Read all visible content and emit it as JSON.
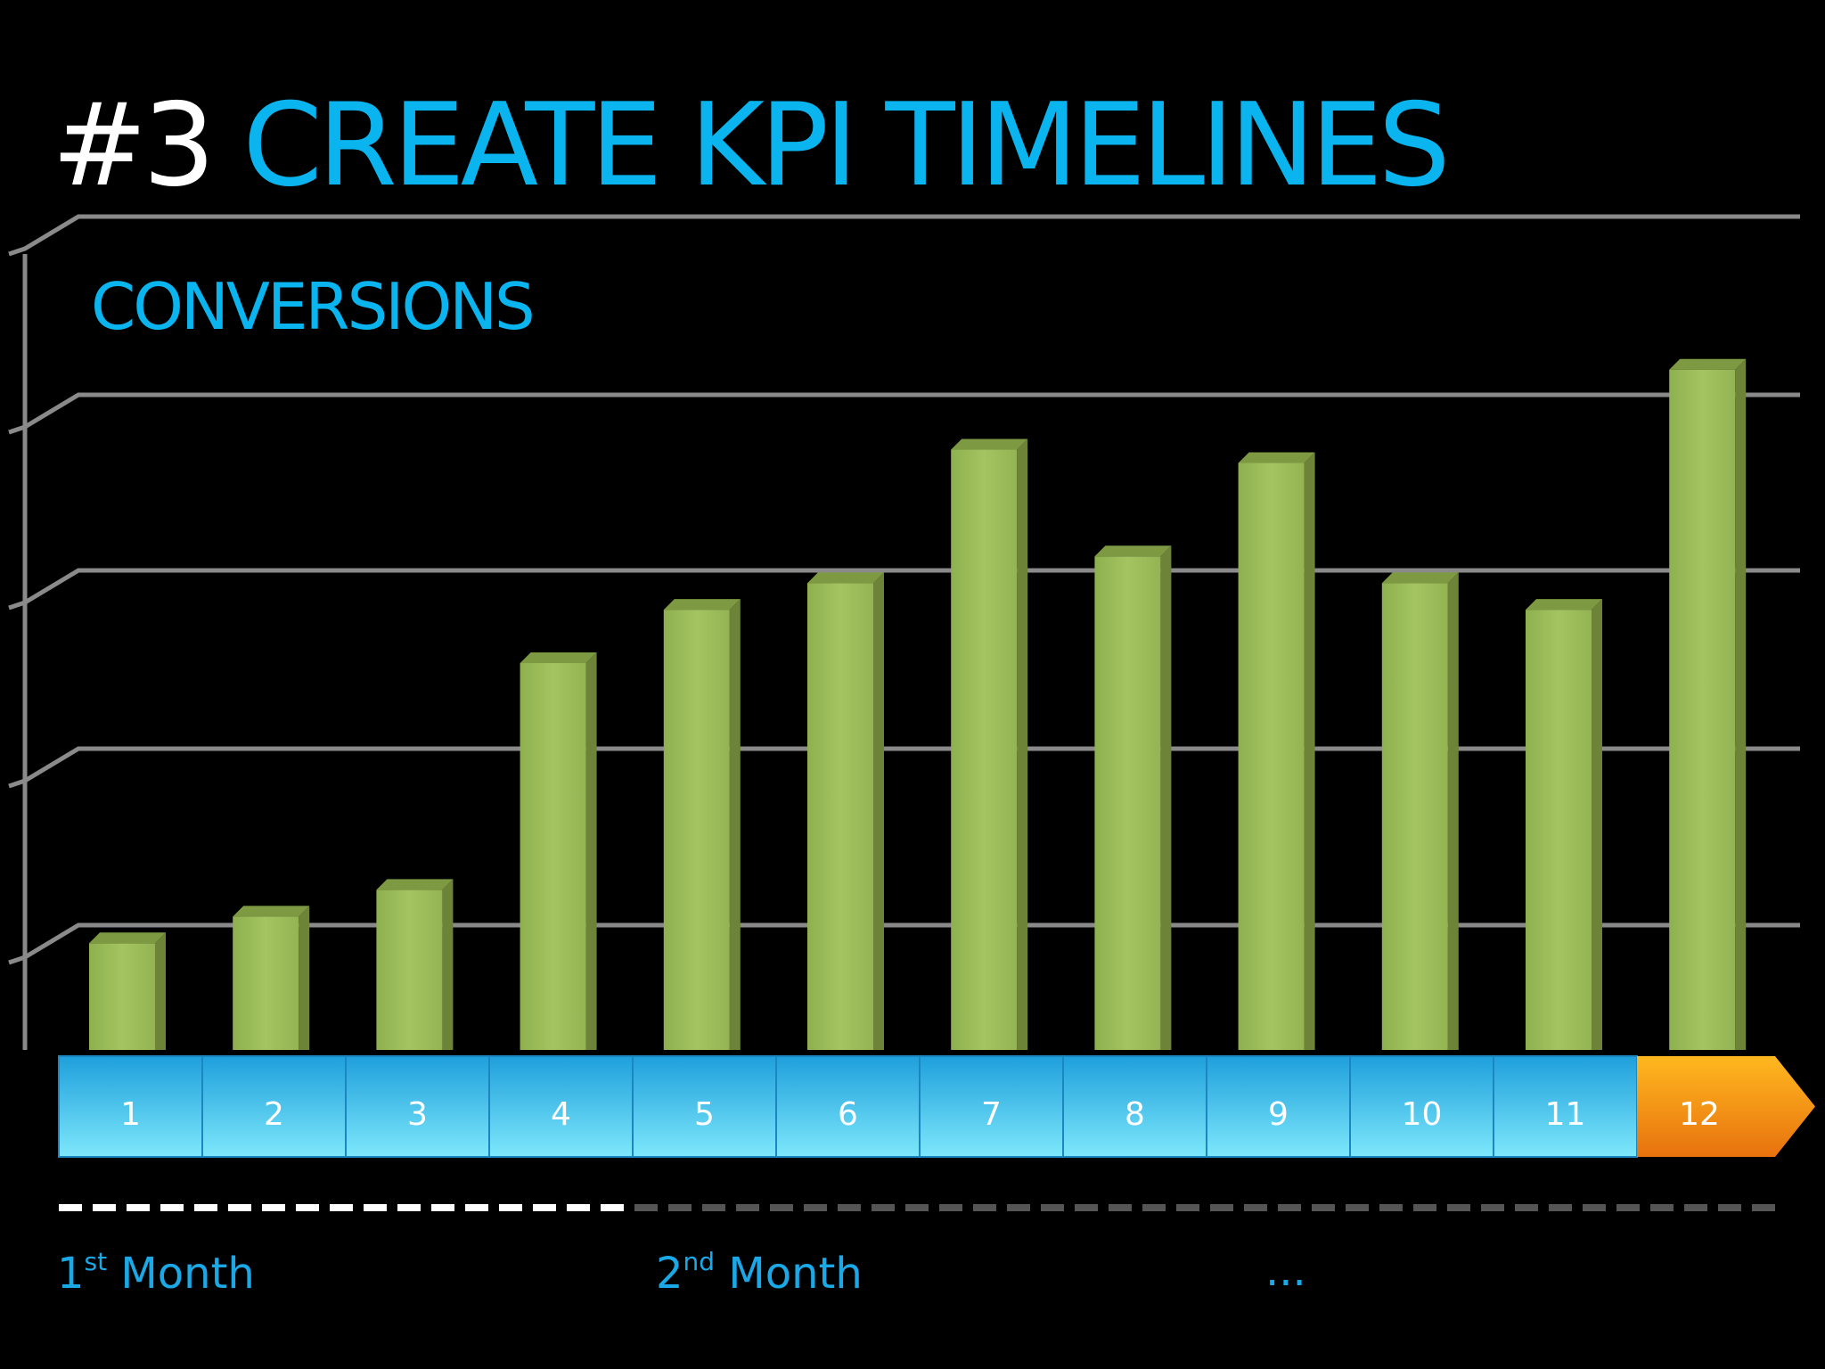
{
  "slide": {
    "title_number": "#3",
    "title_text": "CREATE KPI TIMELINES",
    "subtitle": "CONVERSIONS"
  },
  "colors": {
    "background": "#000000",
    "title_white": "#ffffff",
    "title_blue": "#0ab4ee",
    "bar_green": "#9bbb59",
    "timeline_blue": "#45cdf3",
    "timeline_highlight_orange": "#f5a01a",
    "gridline": "#8a8a8a",
    "dash_active": "#ffffff",
    "dash_inactive": "#555555"
  },
  "chart_data": {
    "type": "bar",
    "title": "CONVERSIONS",
    "categories": [
      "1",
      "2",
      "3",
      "4",
      "5",
      "6",
      "7",
      "8",
      "9",
      "10",
      "11",
      "12"
    ],
    "series": [
      {
        "values": [
          0.8,
          1.0,
          1.2,
          2.9,
          3.3,
          3.5,
          4.5,
          3.7,
          4.4,
          3.5,
          3.3,
          5.1
        ]
      }
    ],
    "highlighted_category": "12",
    "ylim": [
      0,
      5
    ],
    "grid": true,
    "y_tick_labels": false
  },
  "timeline": {
    "phases": [
      {
        "label": "1",
        "superscript": "st",
        "suffix": "Month",
        "active": true
      },
      {
        "label": "2",
        "superscript": "nd",
        "suffix": "Month",
        "active": false
      },
      {
        "label": "...",
        "superscript": "",
        "suffix": "",
        "active": false
      }
    ]
  }
}
